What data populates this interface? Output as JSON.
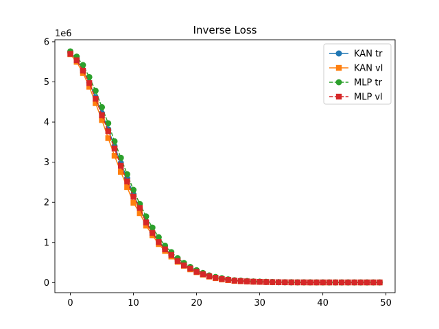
{
  "chart_data": {
    "type": "line",
    "title": "Inverse Loss",
    "xlabel": "",
    "ylabel": "",
    "y_offset_label": "1e6",
    "xlim": [
      -2.45,
      51.45
    ],
    "ylim": [
      -0.25,
      6.05
    ],
    "x_ticks": [
      0,
      10,
      20,
      30,
      40,
      50
    ],
    "y_ticks": [
      0,
      1,
      2,
      3,
      4,
      5,
      6
    ],
    "grid": false,
    "legend_position": "top-right",
    "x": [
      0,
      1,
      2,
      3,
      4,
      5,
      6,
      7,
      8,
      9,
      10,
      11,
      12,
      13,
      14,
      15,
      16,
      17,
      18,
      19,
      20,
      21,
      22,
      23,
      24,
      25,
      26,
      27,
      28,
      29,
      30,
      31,
      32,
      33,
      34,
      35,
      36,
      37,
      38,
      39,
      40,
      41,
      42,
      43,
      44,
      45,
      46,
      47,
      48,
      49
    ],
    "series": [
      {
        "name": "KAN tr",
        "color": "#1f77b4",
        "marker": "circle",
        "linestyle": "solid",
        "values": [
          5.73,
          5.57,
          5.3,
          4.98,
          4.62,
          4.22,
          3.82,
          3.4,
          2.98,
          2.6,
          2.2,
          1.85,
          1.52,
          1.25,
          1.03,
          0.84,
          0.68,
          0.55,
          0.44,
          0.35,
          0.27,
          0.21,
          0.16,
          0.12,
          0.09,
          0.07,
          0.05,
          0.04,
          0.03,
          0.025,
          0.02,
          0.015,
          0.012,
          0.01,
          0.009,
          0.008,
          0.007,
          0.007,
          0.006,
          0.006,
          0.006,
          0.005,
          0.005,
          0.005,
          0.005,
          0.005,
          0.005,
          0.005,
          0.005,
          0.005
        ]
      },
      {
        "name": "KAN vl",
        "color": "#ff7f0e",
        "marker": "square",
        "linestyle": "solid",
        "values": [
          5.69,
          5.5,
          5.22,
          4.88,
          4.47,
          4.05,
          3.6,
          3.16,
          2.76,
          2.38,
          1.99,
          1.73,
          1.42,
          1.18,
          0.96,
          0.79,
          0.65,
          0.52,
          0.42,
          0.33,
          0.26,
          0.2,
          0.15,
          0.11,
          0.08,
          0.06,
          0.045,
          0.035,
          0.028,
          0.022,
          0.018,
          0.014,
          0.011,
          0.009,
          0.008,
          0.007,
          0.006,
          0.006,
          0.005,
          0.005,
          0.005,
          0.005,
          0.005,
          0.005,
          0.005,
          0.005,
          0.005,
          0.005,
          0.005,
          0.005
        ]
      },
      {
        "name": "MLP tr",
        "color": "#2ca02c",
        "marker": "circle",
        "linestyle": "dashed",
        "values": [
          5.76,
          5.63,
          5.42,
          5.12,
          4.78,
          4.37,
          3.97,
          3.52,
          3.11,
          2.7,
          2.31,
          1.96,
          1.65,
          1.37,
          1.13,
          0.92,
          0.76,
          0.61,
          0.49,
          0.39,
          0.31,
          0.24,
          0.18,
          0.14,
          0.11,
          0.08,
          0.06,
          0.05,
          0.04,
          0.03,
          0.025,
          0.02,
          0.016,
          0.013,
          0.011,
          0.01,
          0.009,
          0.008,
          0.008,
          0.007,
          0.007,
          0.007,
          0.007,
          0.007,
          0.007,
          0.007,
          0.007,
          0.007,
          0.007,
          0.007
        ]
      },
      {
        "name": "MLP vl",
        "color": "#d62728",
        "marker": "square",
        "linestyle": "dashed",
        "values": [
          5.7,
          5.54,
          5.28,
          4.97,
          4.58,
          4.17,
          3.77,
          3.34,
          2.91,
          2.52,
          2.14,
          1.86,
          1.5,
          1.24,
          1.01,
          0.83,
          0.69,
          0.54,
          0.43,
          0.35,
          0.27,
          0.21,
          0.16,
          0.12,
          0.09,
          0.07,
          0.05,
          0.04,
          0.032,
          0.025,
          0.02,
          0.016,
          0.013,
          0.011,
          0.009,
          0.008,
          0.007,
          0.007,
          0.006,
          0.006,
          0.006,
          0.006,
          0.006,
          0.006,
          0.006,
          0.006,
          0.006,
          0.006,
          0.006,
          0.006
        ]
      }
    ]
  }
}
